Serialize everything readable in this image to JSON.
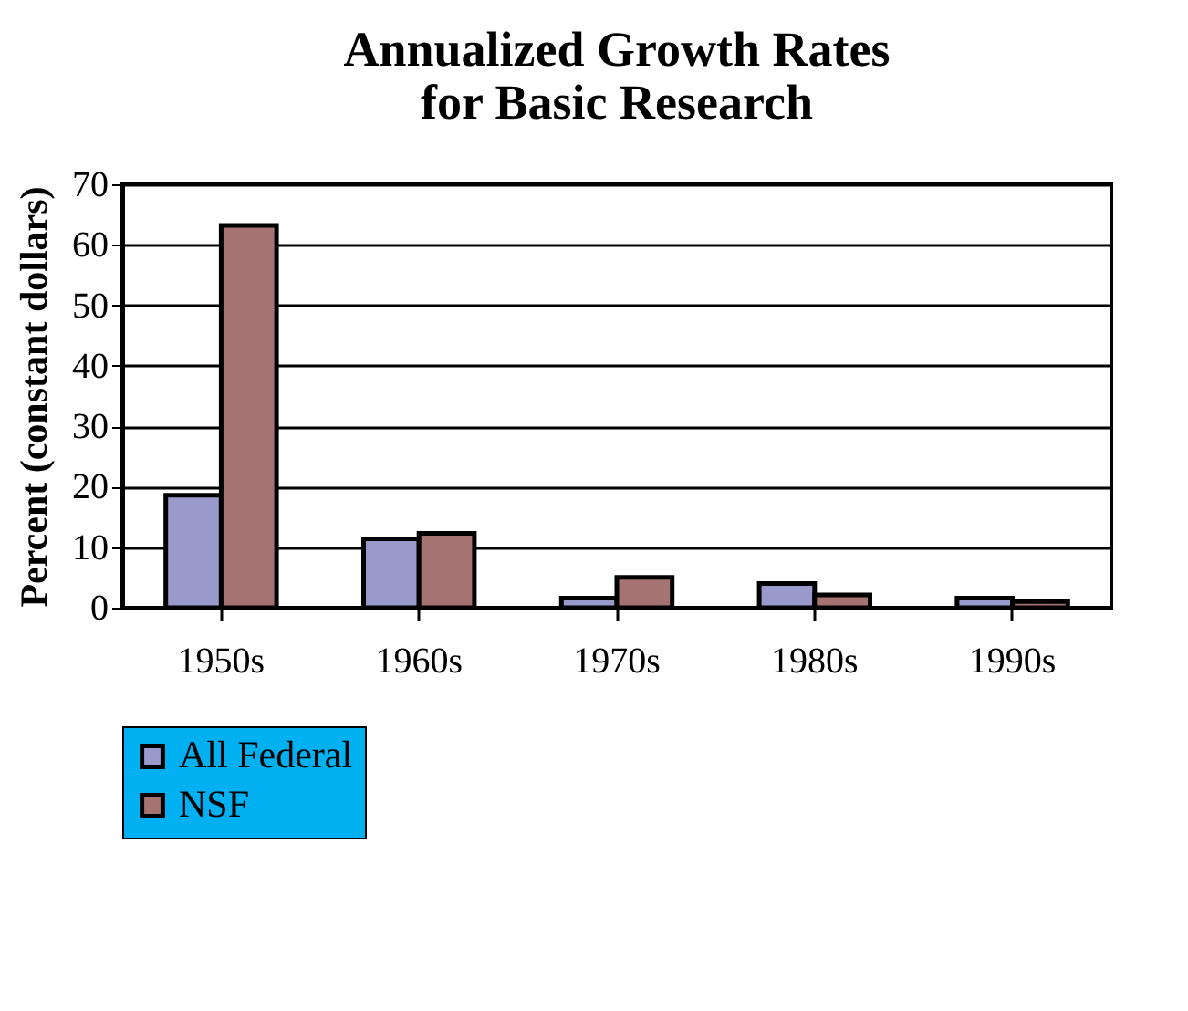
{
  "chart_data": {
    "type": "bar",
    "title": "Annualized Growth Rates\nfor Basic Research",
    "ylabel": "Percent (constant dollars)",
    "categories": [
      "1950s",
      "1960s",
      "1970s",
      "1980s",
      "1990s"
    ],
    "series": [
      {
        "name": "All Federal",
        "color": "#9999cc",
        "values": [
          18.6,
          11.4,
          1.6,
          4.0,
          1.6
        ]
      },
      {
        "name": "NSF",
        "color": "#a67373",
        "values": [
          63.2,
          12.3,
          5.0,
          2.1,
          1.0
        ]
      }
    ],
    "ylim": [
      0,
      70
    ],
    "yticks": [
      0,
      10,
      20,
      30,
      40,
      50,
      60,
      70
    ],
    "grid": "y",
    "legend": "bottom"
  }
}
